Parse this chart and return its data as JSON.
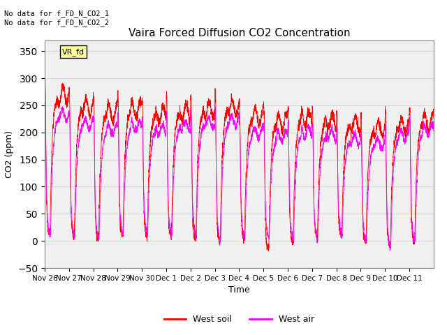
{
  "title": "Vaira Forced Diffusion CO2 Concentration",
  "ylabel": "CO2 (ppm)",
  "xlabel": "Time",
  "ylim": [
    -50,
    370
  ],
  "yticks": [
    -50,
    0,
    50,
    100,
    150,
    200,
    250,
    300,
    350
  ],
  "annotation_top": "No data for f_FD_N_CO2_1\nNo data for f_FD_N_CO2_2",
  "box_label": "VR_fd",
  "legend_entries": [
    "West soil",
    "West air"
  ],
  "legend_colors": [
    "#ff0000",
    "#ff00ff"
  ],
  "soil_color": "#ff0000",
  "air_color": "#ff00ff",
  "n_days": 16,
  "tick_labels": [
    "Nov 26",
    "Nov 27",
    "Nov 28",
    "Nov 29",
    "Nov 30",
    "Dec 1",
    "Dec 2",
    "Dec 3",
    "Dec 4",
    "Dec 5",
    "Dec 6",
    "Dec 7",
    "Dec 8",
    "Dec 9",
    "Dec 10",
    "Dec 11"
  ],
  "figsize": [
    6.4,
    4.8
  ],
  "dpi": 100
}
